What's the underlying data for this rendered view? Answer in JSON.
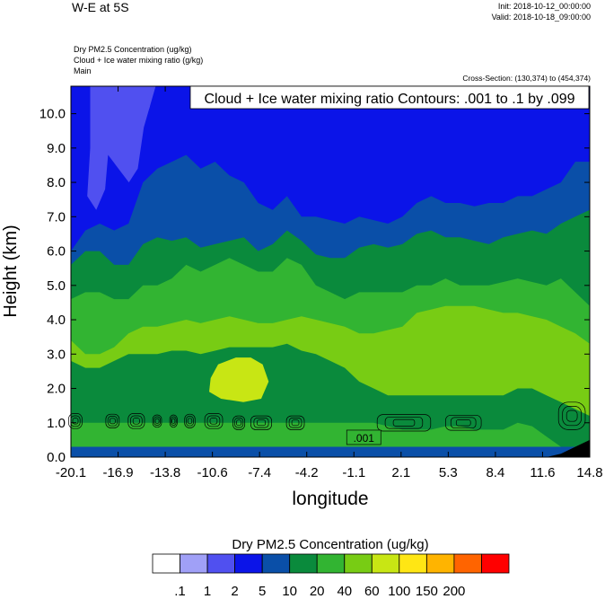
{
  "header": {
    "title": "W-E at 5S",
    "init": "Init: 2018-10-12_00:00:00",
    "valid": "Valid: 2018-10-18_09:00:00",
    "subtitles": [
      "Dry PM2.5 Concentration   (ug/kg)",
      "Cloud + Ice water mixing ratio   (g/kg)",
      "Main"
    ],
    "cross_section": "Cross-Section: (130,374) to (454,374)"
  },
  "chart_data": {
    "type": "heatmap",
    "title": "W-E at 5S",
    "xlabel": "longitude",
    "ylabel": "Height (km)",
    "xlim": [
      -20.1,
      14.8
    ],
    "ylim": [
      0.0,
      10.8
    ],
    "xticks": [
      "-20.1",
      "-16.9",
      "-13.8",
      "-10.6",
      "-7.4",
      "-4.2",
      "-1.1",
      "2.1",
      "5.3",
      "8.4",
      "11.6",
      "14.8"
    ],
    "yticks": [
      "0.0",
      "1.0",
      "2.0",
      "3.0",
      "4.0",
      "5.0",
      "6.0",
      "7.0",
      "8.0",
      "9.0",
      "10.0"
    ],
    "contour_info": "Cloud + Ice water mixing ratio Contours: .001 to .1 by .099",
    "contour_label": ".001",
    "colorbar": {
      "title": "Dry PM2.5 Concentration  (ug/kg)",
      "labels": [
        ".1",
        "1",
        "2",
        "5",
        "10",
        "20",
        "40",
        "60",
        "100",
        "150",
        "200"
      ],
      "colors": [
        "#ffffff",
        "#a0a0f7",
        "#5050f0",
        "#0b14e8",
        "#0a4fa8",
        "#0a8a3c",
        "#32b432",
        "#78cc14",
        "#c8e614",
        "#ffe614",
        "#ffb400",
        "#ff6400",
        "#ff0000"
      ]
    },
    "bands": [
      {
        "level": "<0.1",
        "color": "#000000",
        "heights": [
          0,
          0,
          0,
          0,
          0,
          0,
          0,
          0,
          0,
          0,
          0,
          0,
          0,
          0,
          0,
          0,
          0,
          0,
          0,
          0,
          0,
          0,
          0,
          0,
          0,
          0,
          0,
          0,
          0,
          0,
          0,
          0,
          0,
          0,
          0.1,
          0.3,
          0.5
        ]
      },
      {
        "level": "5-10",
        "color": "#0a4fa8",
        "heights": [
          0.3,
          0.3,
          0.3,
          0.3,
          0.3,
          0.3,
          0.3,
          0.3,
          0.3,
          0.3,
          0.3,
          0.3,
          0.3,
          0.3,
          0.3,
          0.3,
          0.3,
          0.3,
          0.3,
          0.3,
          0.3,
          0.3,
          0.3,
          0.3,
          0.3,
          0.3,
          0.3,
          0.3,
          0.3,
          0.3,
          0.3,
          0.3,
          0.3,
          0.3,
          0.3,
          0.3,
          0.3
        ]
      },
      {
        "level": "20-40",
        "color": "#32b432",
        "heights": [
          1.0,
          1.0,
          1.0,
          1.0,
          1.0,
          1.0,
          1.0,
          1.0,
          1.0,
          1.0,
          1.0,
          1.0,
          1.0,
          1.0,
          1.0,
          1.0,
          1.0,
          1.0,
          1.0,
          1.0,
          1.0,
          1.0,
          0.9,
          0.8,
          0.8,
          0.8,
          0.9,
          0.9,
          0.8,
          0.8,
          0.8,
          1.0,
          0.9,
          0.6,
          0.3,
          0.3,
          0.3
        ]
      },
      {
        "level": "10-20",
        "color": "#0a8a3c",
        "heights": [
          2.8,
          2.6,
          2.6,
          2.8,
          3.0,
          3.0,
          3.0,
          3.1,
          3.1,
          3.0,
          3.1,
          3.2,
          3.2,
          3.2,
          3.2,
          3.3,
          3.1,
          3.0,
          2.8,
          2.6,
          2.2,
          2.0,
          1.8,
          1.8,
          1.8,
          1.8,
          1.8,
          1.8,
          1.8,
          1.8,
          1.8,
          2.0,
          2.0,
          1.8,
          1.6,
          1.4,
          1.2
        ]
      },
      {
        "level": "40-60",
        "color": "#78cc14",
        "heights": [
          3.4,
          3.0,
          3.0,
          3.2,
          3.6,
          3.8,
          3.8,
          3.9,
          4.0,
          3.9,
          4.0,
          4.1,
          4.0,
          3.9,
          3.9,
          4.0,
          4.1,
          4.0,
          3.9,
          3.8,
          3.6,
          3.6,
          3.7,
          3.8,
          4.2,
          4.3,
          4.4,
          4.4,
          4.4,
          4.3,
          4.2,
          4.2,
          4.1,
          4.0,
          3.8,
          3.6,
          3.3
        ]
      },
      {
        "level": "20-40",
        "color": "#32b432",
        "heights": [
          4.6,
          4.8,
          4.8,
          4.6,
          4.6,
          5.0,
          5.0,
          5.2,
          5.6,
          5.4,
          5.6,
          5.8,
          5.6,
          5.4,
          5.4,
          5.8,
          5.6,
          5.0,
          4.8,
          4.6,
          4.8,
          4.8,
          4.8,
          4.8,
          5.0,
          5.0,
          5.2,
          5.0,
          5.0,
          5.0,
          5.1,
          5.2,
          5.1,
          5.0,
          5.2,
          4.8,
          4.4
        ]
      },
      {
        "level": "10-20",
        "color": "#0a8a3c",
        "heights": [
          5.6,
          6.0,
          6.0,
          5.6,
          5.6,
          6.2,
          6.4,
          6.3,
          6.4,
          6.1,
          6.2,
          6.3,
          6.4,
          6.0,
          6.2,
          6.6,
          6.3,
          5.9,
          5.8,
          5.8,
          6.1,
          6.2,
          6.1,
          6.2,
          6.5,
          6.6,
          6.4,
          6.4,
          6.3,
          6.2,
          6.4,
          6.5,
          6.6,
          6.5,
          6.8,
          7.0,
          7.2
        ]
      },
      {
        "level": "5-10",
        "color": "#0a4fa8",
        "heights": [
          6.0,
          6.6,
          6.8,
          6.6,
          6.8,
          8.0,
          8.4,
          8.6,
          8.8,
          8.4,
          8.6,
          8.2,
          8.0,
          7.4,
          7.2,
          7.6,
          7.0,
          7.0,
          6.9,
          6.8,
          7.0,
          6.9,
          6.8,
          7.0,
          7.4,
          7.6,
          7.4,
          7.4,
          7.3,
          7.4,
          7.4,
          7.6,
          7.6,
          7.8,
          8.0,
          8.6,
          8.6
        ]
      },
      {
        "level": "2-5",
        "color": "#0b14e8",
        "heights": [
          10.8,
          10.8,
          10.8,
          10.8,
          10.8,
          10.8,
          10.8,
          10.8,
          10.8,
          10.8,
          10.8,
          10.8,
          10.8,
          10.8,
          10.8,
          10.8,
          10.8,
          10.8,
          10.8,
          10.8,
          10.8,
          10.8,
          10.8,
          10.8,
          10.8,
          10.8,
          10.8,
          10.8,
          10.8,
          10.8,
          10.8,
          10.8,
          10.8,
          10.8,
          10.8,
          10.8,
          10.8
        ]
      }
    ],
    "patches": [
      {
        "level": "60-100",
        "color": "#c8e614",
        "points": [
          [
            -10.7,
            2.3
          ],
          [
            -10.2,
            2.7
          ],
          [
            -9.0,
            2.9
          ],
          [
            -8.0,
            2.9
          ],
          [
            -7.2,
            2.7
          ],
          [
            -6.8,
            2.2
          ],
          [
            -7.3,
            1.7
          ],
          [
            -8.5,
            1.6
          ],
          [
            -10.0,
            1.7
          ],
          [
            -10.8,
            1.9
          ]
        ]
      },
      {
        "level": "1-2",
        "color": "#a0a0f7",
        "points": [
          [
            -18.5,
            10.8
          ],
          [
            -17.8,
            9.4
          ],
          [
            -17.0,
            9.0
          ],
          [
            -15.8,
            9.0
          ],
          [
            -14.8,
            10.2
          ],
          [
            -14.6,
            10.8
          ]
        ]
      },
      {
        "level": "2-5 (core)",
        "color": "#5050f0",
        "points": [
          [
            -18.8,
            10.8
          ],
          [
            -18.8,
            9.0
          ],
          [
            -19.0,
            7.6
          ],
          [
            -18.4,
            7.2
          ],
          [
            -17.8,
            7.8
          ],
          [
            -17.6,
            8.8
          ],
          [
            -16.2,
            8.0
          ],
          [
            -15.6,
            8.4
          ],
          [
            -15.2,
            9.6
          ],
          [
            -14.4,
            10.8
          ]
        ]
      }
    ]
  }
}
